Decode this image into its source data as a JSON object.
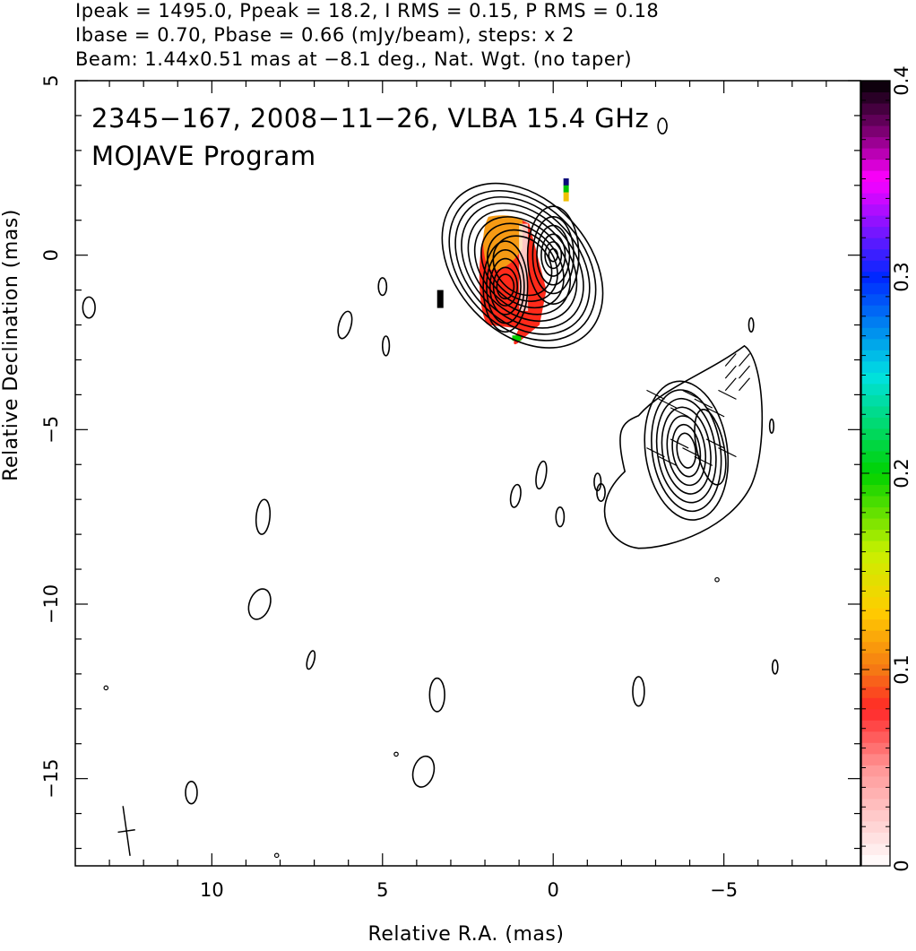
{
  "header": {
    "line1": "Ipeak = 1495.0, Ppeak = 18.2, I RMS = 0.15, P RMS = 0.18",
    "line2": "Ibase = 0.70, Pbase = 0.66 (mJy/beam), steps: x 2",
    "line3": "Beam: 1.44x0.51 mas at −8.1 deg., Nat. Wgt. (no taper)"
  },
  "annotations": {
    "source": "2345−167, 2008−11−26, VLBA 15.4 GHz",
    "program": "MOJAVE Program"
  },
  "colors": {
    "contour": "#000000",
    "frame": "#000000",
    "polarization_main": "#ff2a1a",
    "polarization_high": "#f59a14"
  },
  "chart_data": {
    "type": "heatmap",
    "title": "2345−167, 2008−11−26, VLBA 15.4 GHz",
    "subtitle": "MOJAVE Program",
    "xlabel": "Relative R.A. (mas)",
    "ylabel": "Relative Declination (mas)",
    "xlim": [
      14,
      -9
    ],
    "ylim": [
      -17.5,
      5
    ],
    "x_ticks": [
      10,
      5,
      0,
      -5
    ],
    "x_tick_labels": [
      "10",
      "5",
      "0",
      "−5"
    ],
    "y_ticks": [
      5,
      0,
      -5,
      -10,
      -15
    ],
    "y_tick_labels": [
      "5",
      "0",
      "−5",
      "−10",
      "−15"
    ],
    "colorbar": {
      "min": 0,
      "max": 0.4,
      "ticks": [
        0,
        0.1,
        0.2,
        0.3,
        0.4
      ],
      "tick_labels": [
        "0",
        "0.1",
        "0.2",
        "0.3",
        "0.4"
      ]
    },
    "core": {
      "x": 0,
      "y": 0,
      "peak_mJy_per_beam": 1495.0
    },
    "polarization": {
      "peak_mJy_per_beam": 18.2,
      "rms": 0.18,
      "base": 0.66
    },
    "intensity": {
      "rms": 0.15,
      "base": 0.7,
      "contour_step": 2
    },
    "beam": {
      "major_mas": 1.44,
      "minor_mas": 0.51,
      "pa_deg": -8.1,
      "x": 12.5,
      "y": -16.5
    },
    "grid": false
  }
}
